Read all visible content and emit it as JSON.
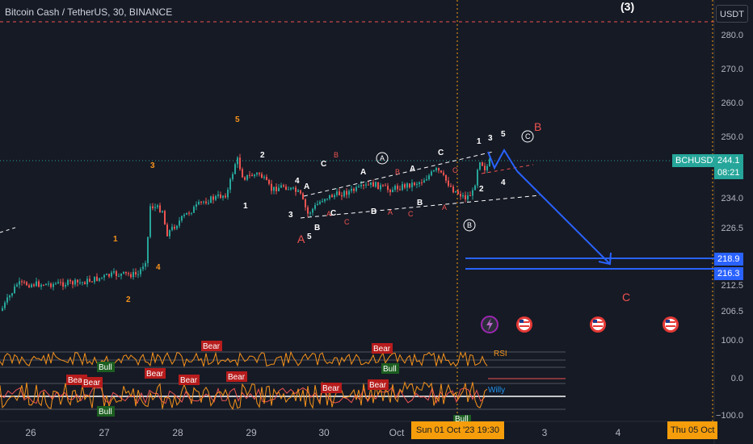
{
  "header": {
    "symbol_title": "Bitcoin Cash / TetherUS, 30, BINANCE",
    "wave_label_top": "(3)",
    "currency_button": "USDT"
  },
  "price_axis": {
    "labels": [
      "280.0",
      "270.0",
      "260.0",
      "250.0",
      "234.0",
      "226.5",
      "212.5",
      "206.5",
      "100.0",
      "0.0",
      "−100.0"
    ],
    "symbol_badge": "BCHUSDT",
    "last_price": "244.1",
    "countdown": "08:21",
    "target_upper": "218.9",
    "target_lower": "216.3"
  },
  "time_axis": {
    "labels": [
      "26",
      "27",
      "28",
      "29",
      "30",
      "Oct",
      "3",
      "4"
    ],
    "cursor_date": "Sun 01 Oct '23   19:30",
    "end_date": "Thu 05 Oct"
  },
  "indicators": {
    "rsi_label": "RSI",
    "willy_label": "Willy",
    "bull_label": "Bull",
    "bear_label": "Bear"
  },
  "wave_labels": {
    "orange": [
      "5",
      "3",
      "1",
      "4",
      "2"
    ],
    "white": [
      "2",
      "1",
      "4",
      "3",
      "5",
      "B",
      "C",
      "A",
      "A",
      "C",
      "B",
      "A",
      "C",
      "B",
      "1",
      "3",
      "5",
      "2",
      "4"
    ],
    "red": [
      "A",
      "B",
      "C",
      "A",
      "C",
      "A",
      "B",
      "C",
      "A",
      "B",
      "C"
    ],
    "circled": [
      "A",
      "B",
      "C"
    ]
  },
  "colors": {
    "background": "#161a25",
    "up": "#26a69a",
    "down": "#ef5350",
    "projection": "#2962ff",
    "orange": "#f7931a",
    "rsi_line": "#f7931a",
    "willy_line": "#2196f3"
  },
  "icons": {
    "event_lightning": "lightning-icon",
    "event_flag": "us-flag-icon"
  }
}
